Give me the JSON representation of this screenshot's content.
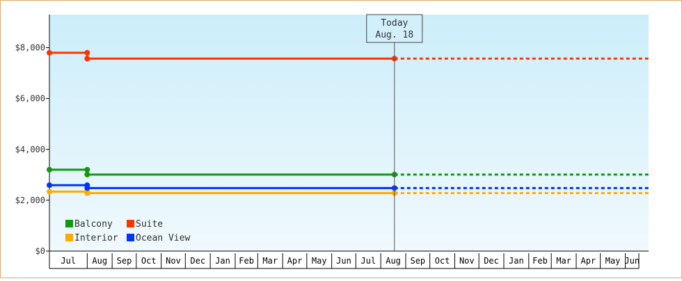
{
  "chart_data": {
    "type": "line",
    "title": "",
    "xlabel": "",
    "ylabel": "",
    "ylim": [
      0,
      9300
    ],
    "y_ticks": [
      0,
      2000,
      4000,
      6000,
      8000
    ],
    "y_tick_labels": [
      "$0",
      "$2,000",
      "$4,000",
      "$6,000",
      "$8,000"
    ],
    "x_start": "2016-06-15",
    "x_end": "2018-06-30",
    "month_labels": [
      "Jul",
      "Aug",
      "Sep",
      "Oct",
      "Nov",
      "Dec",
      "Jan",
      "Feb",
      "Mar",
      "Apr",
      "May",
      "Jun",
      "Jul",
      "Aug",
      "Sep",
      "Oct",
      "Nov",
      "Dec",
      "Jan",
      "Feb",
      "Mar",
      "Apr",
      "May",
      "Jun"
    ],
    "today": {
      "line1": "Today",
      "line2": "Aug. 18",
      "date": "2017-08-18"
    },
    "grid": false,
    "legend": "bottom-left",
    "series": [
      {
        "name": "Balcony",
        "color": "#119911",
        "points": [
          {
            "x": "2016-06-15",
            "y": 3200
          },
          {
            "x": "2016-08-01",
            "y": 3200
          },
          {
            "x": "2016-08-01",
            "y": 3010
          },
          {
            "x": "2017-08-18",
            "y": 3010
          }
        ],
        "projection": 3010
      },
      {
        "name": "Suite",
        "color": "#ff3300",
        "points": [
          {
            "x": "2016-06-15",
            "y": 7800
          },
          {
            "x": "2016-08-01",
            "y": 7800
          },
          {
            "x": "2016-08-01",
            "y": 7570
          },
          {
            "x": "2017-08-18",
            "y": 7570
          }
        ],
        "projection": 7570
      },
      {
        "name": "Interior",
        "color": "#ffaa00",
        "points": [
          {
            "x": "2016-06-15",
            "y": 2340
          },
          {
            "x": "2016-08-01",
            "y": 2340
          },
          {
            "x": "2016-08-01",
            "y": 2280
          },
          {
            "x": "2017-08-18",
            "y": 2280
          }
        ],
        "projection": 2280
      },
      {
        "name": "Ocean View",
        "color": "#0033ff",
        "points": [
          {
            "x": "2016-06-15",
            "y": 2590
          },
          {
            "x": "2016-08-01",
            "y": 2590
          },
          {
            "x": "2016-08-01",
            "y": 2480
          },
          {
            "x": "2017-08-18",
            "y": 2480
          }
        ],
        "projection": 2480
      }
    ]
  }
}
